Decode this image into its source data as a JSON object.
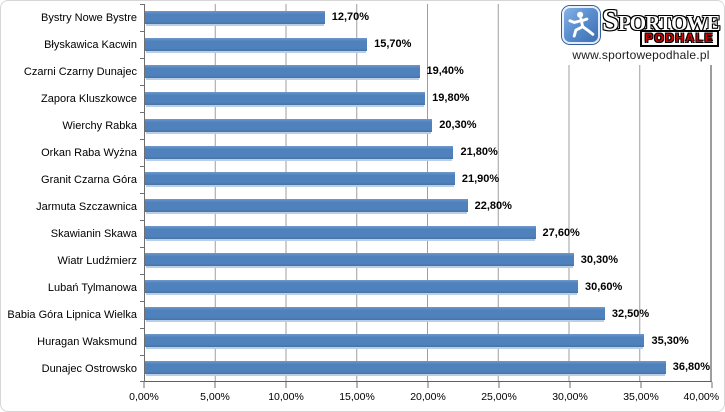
{
  "brand": {
    "name_top": "SPORTOWE",
    "name_bottom": "PODHALE",
    "url": "www.sportowepodhale.pl",
    "icon": "runner-icon",
    "colors": {
      "icon_blue": "#4a7cc0",
      "podhale_red": "#d40000"
    }
  },
  "chart_data": {
    "type": "bar",
    "orientation": "horizontal",
    "title": "",
    "xlabel": "",
    "ylabel": "",
    "categories": [
      "Bystry Nowe Bystre",
      "Błyskawica Kacwin",
      "Czarni Czarny Dunajec",
      "Zapora Kluszkowce",
      "Wierchy Rabka",
      "Orkan Raba Wyżna",
      "Granit Czarna Góra",
      "Jarmuta Szczawnica",
      "Skawianin Skawa",
      "Wiatr Ludźmierz",
      "Lubań Tylmanowa",
      "Babia Góra Lipnica Wielka",
      "Huragan Waksmund",
      "Dunajec Ostrowsko"
    ],
    "values": [
      12.7,
      15.7,
      19.4,
      19.8,
      20.3,
      21.8,
      21.9,
      22.8,
      27.6,
      30.3,
      30.6,
      32.5,
      35.3,
      36.8
    ],
    "value_labels": [
      "12,70%",
      "15,70%",
      "19,40%",
      "19,80%",
      "20,30%",
      "21,80%",
      "21,90%",
      "22,80%",
      "27,60%",
      "30,30%",
      "30,60%",
      "32,50%",
      "35,30%",
      "36,80%"
    ],
    "x_ticks": [
      "0,00%",
      "5,00%",
      "10,00%",
      "15,00%",
      "20,00%",
      "25,00%",
      "30,00%",
      "35,00%",
      "40,00%"
    ],
    "xlim": [
      0,
      40
    ],
    "grid": true,
    "legend": "none",
    "bar_color": "#4f81bd"
  }
}
